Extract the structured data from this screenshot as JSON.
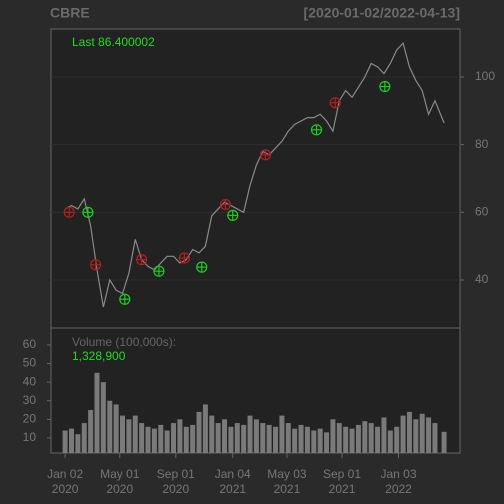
{
  "chart_data": [
    {
      "type": "line",
      "title": "CBRE",
      "subtitle": "[2020-01-02/2022-04-13]",
      "annotation": "Last 86.400002",
      "x": [
        "2020-01-02",
        "2020-01-16",
        "2020-01-30",
        "2020-02-13",
        "2020-02-27",
        "2020-03-12",
        "2020-03-26",
        "2020-04-09",
        "2020-04-23",
        "2020-05-07",
        "2020-05-21",
        "2020-06-04",
        "2020-06-18",
        "2020-07-02",
        "2020-07-16",
        "2020-07-30",
        "2020-08-13",
        "2020-08-27",
        "2020-09-10",
        "2020-09-24",
        "2020-10-08",
        "2020-10-22",
        "2020-11-05",
        "2020-11-19",
        "2020-12-03",
        "2020-12-17",
        "2020-12-31",
        "2021-01-14",
        "2021-01-28",
        "2021-02-11",
        "2021-02-25",
        "2021-03-11",
        "2021-03-25",
        "2021-04-08",
        "2021-04-22",
        "2021-05-06",
        "2021-05-20",
        "2021-06-03",
        "2021-06-17",
        "2021-07-01",
        "2021-07-15",
        "2021-07-29",
        "2021-08-12",
        "2021-08-26",
        "2021-09-09",
        "2021-09-23",
        "2021-10-07",
        "2021-10-21",
        "2021-11-04",
        "2021-11-18",
        "2021-12-02",
        "2021-12-16",
        "2021-12-30",
        "2022-01-13",
        "2022-01-27",
        "2022-02-10",
        "2022-02-24",
        "2022-03-10",
        "2022-03-24",
        "2022-04-13"
      ],
      "series": [
        {
          "color": "#8a8a8a",
          "values": [
            61,
            62,
            61,
            64,
            56,
            43,
            32,
            40,
            37,
            36,
            42,
            52,
            46,
            44,
            43,
            45,
            47,
            47,
            45,
            46,
            49,
            48,
            50,
            59,
            61,
            63,
            62,
            61,
            60,
            68,
            74,
            78,
            77,
            79,
            81,
            84,
            86,
            87,
            88,
            88,
            89,
            87,
            84,
            93,
            96,
            94,
            97,
            100,
            104,
            103,
            101,
            104,
            108,
            110,
            103,
            99,
            96,
            89,
            93,
            86.400002
          ]
        }
      ],
      "signals": [
        {
          "color": "#b02020",
          "x": [
            "2020-01-11",
            "2020-03-09",
            "2020-06-18",
            "2020-09-20",
            "2020-12-19",
            "2021-03-17",
            "2021-08-17"
          ],
          "values": [
            60,
            44.5,
            46,
            46.5,
            62.3,
            77,
            92.4
          ]
        },
        {
          "color": "#22cc22",
          "x": [
            "2020-02-21",
            "2020-05-12",
            "2020-07-26",
            "2020-10-28",
            "2021-01-04",
            "2021-07-07",
            "2021-12-04"
          ],
          "values": [
            60,
            34.3,
            42.6,
            43.8,
            59.1,
            84.4,
            97.2
          ]
        }
      ],
      "xlim": [
        "2019-12-02",
        "2022-05-18"
      ],
      "ylim": [
        25.8,
        114.2
      ],
      "yticks": [
        40,
        60,
        80,
        100
      ],
      "grid": true
    },
    {
      "type": "bar",
      "title": "Volume (100,000s):",
      "annotation": "1,328,900",
      "x": [
        "2020-01-02",
        "2020-01-16",
        "2020-01-30",
        "2020-02-13",
        "2020-02-27",
        "2020-03-12",
        "2020-03-26",
        "2020-04-09",
        "2020-04-23",
        "2020-05-07",
        "2020-05-21",
        "2020-06-04",
        "2020-06-18",
        "2020-07-02",
        "2020-07-16",
        "2020-07-30",
        "2020-08-13",
        "2020-08-27",
        "2020-09-10",
        "2020-09-24",
        "2020-10-08",
        "2020-10-22",
        "2020-11-05",
        "2020-11-19",
        "2020-12-03",
        "2020-12-17",
        "2020-12-31",
        "2021-01-14",
        "2021-01-28",
        "2021-02-11",
        "2021-02-25",
        "2021-03-11",
        "2021-03-25",
        "2021-04-08",
        "2021-04-22",
        "2021-05-06",
        "2021-05-20",
        "2021-06-03",
        "2021-06-17",
        "2021-07-01",
        "2021-07-15",
        "2021-07-29",
        "2021-08-12",
        "2021-08-26",
        "2021-09-09",
        "2021-09-23",
        "2021-10-07",
        "2021-10-21",
        "2021-11-04",
        "2021-11-18",
        "2021-12-02",
        "2021-12-16",
        "2021-12-30",
        "2022-01-13",
        "2022-01-27",
        "2022-02-10",
        "2022-02-24",
        "2022-03-10",
        "2022-03-24",
        "2022-04-13"
      ],
      "values": [
        14,
        15,
        12,
        18,
        25,
        45,
        40,
        30,
        28,
        22,
        20,
        22,
        18,
        16,
        15,
        17,
        14,
        18,
        20,
        16,
        17,
        24,
        28,
        22,
        18,
        20,
        16,
        18,
        17,
        22,
        20,
        18,
        17,
        16,
        22,
        18,
        15,
        17,
        16,
        14,
        15,
        13,
        20,
        18,
        16,
        15,
        17,
        19,
        18,
        16,
        21,
        14,
        16,
        22,
        24,
        20,
        23,
        21,
        18,
        13.289
      ],
      "color": "#7a7a7a",
      "xlim": [
        "2019-12-02",
        "2022-05-18"
      ],
      "ylim": [
        1.9,
        69.1
      ],
      "yticks": [
        10,
        20,
        30,
        40,
        50,
        60
      ],
      "xticks": [
        {
          "value": "2020-01-02",
          "label": "Jan 02 2020"
        },
        {
          "value": "2020-05-01",
          "label": "May 01 2020"
        },
        {
          "value": "2020-09-01",
          "label": "Sep 01 2020"
        },
        {
          "value": "2021-01-04",
          "label": "Jan 04 2021"
        },
        {
          "value": "2021-05-03",
          "label": "May 03 2021"
        },
        {
          "value": "2021-09-01",
          "label": "Sep 01 2021"
        },
        {
          "value": "2022-01-03",
          "label": "Jan 03 2022"
        }
      ]
    }
  ]
}
